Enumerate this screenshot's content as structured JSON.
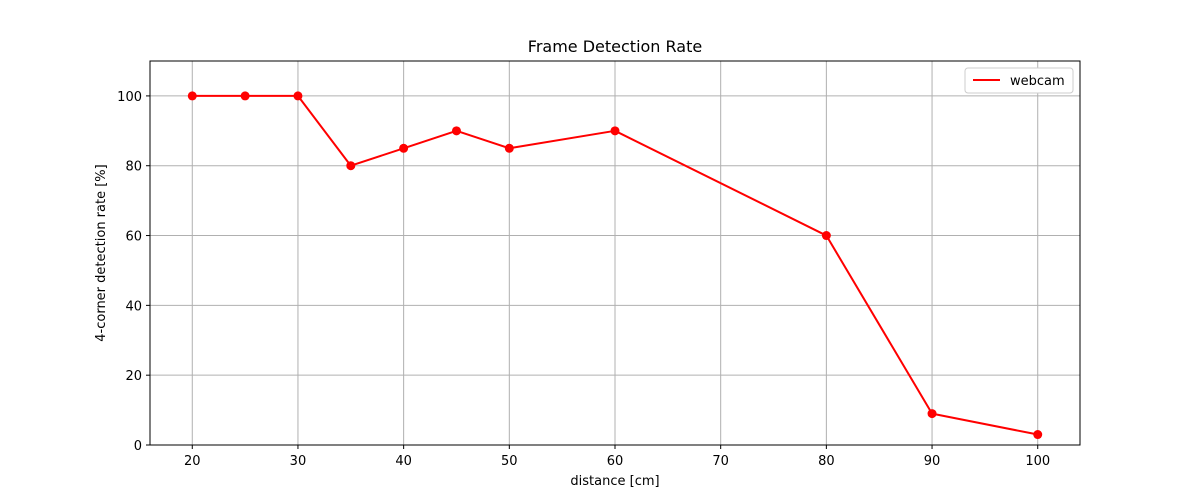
{
  "chart_data": {
    "type": "line",
    "title": "Frame Detection Rate",
    "xlabel": "distance [cm]",
    "ylabel": "4-corner detection rate [%]",
    "xlim": [
      16,
      104
    ],
    "ylim": [
      0,
      110
    ],
    "xticks": [
      20,
      30,
      40,
      50,
      60,
      70,
      80,
      90,
      100
    ],
    "yticks": [
      0,
      20,
      40,
      60,
      80,
      100
    ],
    "grid": true,
    "legend_position": "top-right",
    "series": [
      {
        "name": "webcam",
        "color": "#ff0000",
        "x": [
          20,
          25,
          30,
          35,
          40,
          45,
          50,
          60,
          80,
          90,
          100
        ],
        "y": [
          100,
          100,
          100,
          80,
          85,
          90,
          85,
          90,
          60,
          9,
          3
        ]
      }
    ]
  }
}
